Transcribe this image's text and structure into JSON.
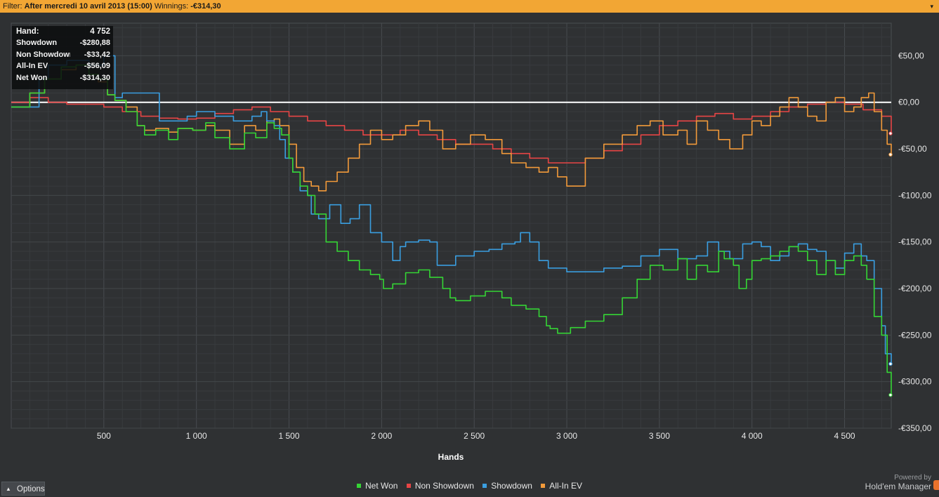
{
  "filter": {
    "label": "Filter:",
    "value": "After mercredi 10 avril 2013 (15:00)",
    "winnings_label": "Winnings:",
    "winnings_value": "-€314,30"
  },
  "tooltip": {
    "rows": [
      {
        "label": "Hand:",
        "value": "4 752"
      },
      {
        "label": "Showdown",
        "value": "-$280,88"
      },
      {
        "label": "Non Showdown",
        "value": "-$33,42"
      },
      {
        "label": "All-In EV",
        "value": "-$56,09"
      },
      {
        "label": "Net Won",
        "value": "-$314,30"
      }
    ]
  },
  "options_label": "Options",
  "powered_by": "Powered by",
  "brand": "Hold'em Manager",
  "colors": {
    "background": "#2f3133",
    "grid": "#43474a",
    "zero_line": "#ffffff",
    "filter_bar": "#f2a634"
  },
  "chart_data": {
    "type": "line",
    "xlabel": "Hands",
    "ylabel": "",
    "xlim": [
      0,
      4752
    ],
    "ylim": [
      -350,
      85
    ],
    "x_ticks": [
      500,
      1000,
      1500,
      2000,
      2500,
      3000,
      3500,
      4000,
      4500
    ],
    "x_tick_labels": [
      "500",
      "1 000",
      "1 500",
      "2 000",
      "2 500",
      "3 000",
      "3 500",
      "4 000",
      "4 500"
    ],
    "y_ticks": [
      50,
      0,
      -50,
      -100,
      -150,
      -200,
      -250,
      -300,
      -350
    ],
    "y_tick_labels": [
      "€50,00",
      "€0,00",
      "-€50,00",
      "-€100,00",
      "-€150,00",
      "-€200,00",
      "-€250,00",
      "-€300,00",
      "-€350,00"
    ],
    "legend": "bottom-center",
    "grid": true,
    "series": [
      {
        "name": "Net Won",
        "color": "#35d535",
        "x": [
          0,
          100,
          180,
          270,
          350,
          420,
          470,
          520,
          560,
          620,
          680,
          720,
          780,
          850,
          900,
          980,
          1050,
          1100,
          1180,
          1260,
          1320,
          1380,
          1420,
          1460,
          1500,
          1520,
          1560,
          1600,
          1640,
          1700,
          1760,
          1820,
          1880,
          1940,
          1990,
          2010,
          2060,
          2130,
          2200,
          2260,
          2330,
          2370,
          2400,
          2480,
          2560,
          2650,
          2700,
          2780,
          2850,
          2890,
          2910,
          2950,
          3020,
          3100,
          3200,
          3300,
          3380,
          3450,
          3520,
          3600,
          3650,
          3700,
          3760,
          3820,
          3850,
          3900,
          3930,
          3970,
          4000,
          4050,
          4100,
          4150,
          4200,
          4250,
          4300,
          4350,
          4400,
          4450,
          4500,
          4550,
          4590,
          4620,
          4660,
          4700,
          4730,
          4752
        ],
        "y": [
          -5,
          10,
          25,
          38,
          40,
          30,
          25,
          8,
          2,
          -10,
          -25,
          -35,
          -30,
          -40,
          -28,
          -30,
          -22,
          -38,
          -50,
          -33,
          -38,
          -22,
          -28,
          -35,
          -60,
          -75,
          -90,
          -100,
          -120,
          -150,
          -160,
          -170,
          -180,
          -185,
          -190,
          -200,
          -195,
          -183,
          -180,
          -188,
          -200,
          -210,
          -213,
          -208,
          -203,
          -210,
          -218,
          -222,
          -230,
          -240,
          -243,
          -248,
          -242,
          -235,
          -228,
          -210,
          -190,
          -175,
          -180,
          -168,
          -190,
          -175,
          -182,
          -160,
          -168,
          -175,
          -200,
          -190,
          -170,
          -168,
          -165,
          -160,
          -155,
          -160,
          -170,
          -185,
          -170,
          -185,
          -170,
          -165,
          -175,
          -190,
          -230,
          -250,
          -290,
          -314.3
        ]
      },
      {
        "name": "Non Showdown",
        "color": "#e84545",
        "x": [
          0,
          100,
          200,
          300,
          400,
          500,
          600,
          700,
          800,
          900,
          1000,
          1100,
          1200,
          1300,
          1400,
          1500,
          1600,
          1700,
          1800,
          1900,
          2000,
          2100,
          2200,
          2300,
          2400,
          2500,
          2600,
          2700,
          2800,
          2900,
          3000,
          3100,
          3200,
          3300,
          3400,
          3500,
          3600,
          3700,
          3800,
          3900,
          4000,
          4100,
          4200,
          4300,
          4400,
          4500,
          4600,
          4700,
          4752
        ],
        "y": [
          0,
          5,
          0,
          -2,
          -2,
          -5,
          -10,
          -15,
          -17,
          -18,
          -17,
          -12,
          -8,
          -5,
          -10,
          -15,
          -20,
          -25,
          -30,
          -35,
          -35,
          -30,
          -35,
          -40,
          -45,
          -45,
          -50,
          -55,
          -60,
          -65,
          -65,
          -60,
          -52,
          -45,
          -35,
          -25,
          -20,
          -15,
          -12,
          -18,
          -15,
          -10,
          -5,
          -2,
          0,
          -2,
          -8,
          -15,
          -33.4
        ]
      },
      {
        "name": "Showdown",
        "color": "#3a9ee0",
        "x": [
          0,
          100,
          150,
          200,
          300,
          420,
          500,
          560,
          600,
          700,
          800,
          900,
          950,
          1000,
          1100,
          1200,
          1300,
          1350,
          1380,
          1420,
          1450,
          1480,
          1520,
          1560,
          1600,
          1620,
          1660,
          1720,
          1780,
          1830,
          1880,
          1940,
          2000,
          2060,
          2100,
          2130,
          2200,
          2260,
          2300,
          2400,
          2500,
          2580,
          2650,
          2720,
          2750,
          2800,
          2850,
          2900,
          3000,
          3100,
          3200,
          3300,
          3400,
          3500,
          3600,
          3700,
          3760,
          3820,
          3880,
          3950,
          4000,
          4050,
          4100,
          4150,
          4200,
          4250,
          4300,
          4350,
          4400,
          4450,
          4500,
          4550,
          4590,
          4620,
          4660,
          4700,
          4720,
          4752
        ],
        "y": [
          -5,
          -5,
          25,
          40,
          45,
          40,
          50,
          5,
          10,
          10,
          -20,
          -20,
          -15,
          -10,
          -15,
          -20,
          -15,
          -10,
          -20,
          -25,
          -40,
          -60,
          -75,
          -95,
          -100,
          -120,
          -125,
          -110,
          -130,
          -125,
          -110,
          -140,
          -150,
          -170,
          -155,
          -150,
          -148,
          -150,
          -175,
          -165,
          -160,
          -158,
          -152,
          -150,
          -140,
          -150,
          -170,
          -178,
          -182,
          -182,
          -178,
          -176,
          -165,
          -158,
          -168,
          -165,
          -150,
          -160,
          -168,
          -152,
          -150,
          -155,
          -170,
          -165,
          -155,
          -152,
          -158,
          -160,
          -170,
          -178,
          -162,
          -152,
          -165,
          -170,
          -200,
          -240,
          -270,
          -280.9
        ]
      },
      {
        "name": "All-In EV",
        "color": "#f29a3a",
        "x": [
          0,
          100,
          180,
          270,
          350,
          420,
          470,
          520,
          560,
          620,
          680,
          720,
          780,
          850,
          900,
          980,
          1050,
          1100,
          1180,
          1260,
          1320,
          1380,
          1420,
          1450,
          1500,
          1540,
          1580,
          1620,
          1660,
          1700,
          1760,
          1820,
          1880,
          1940,
          2000,
          2060,
          2130,
          2200,
          2260,
          2330,
          2400,
          2480,
          2560,
          2650,
          2700,
          2780,
          2850,
          2900,
          2950,
          3000,
          3100,
          3200,
          3300,
          3380,
          3450,
          3520,
          3600,
          3650,
          3700,
          3760,
          3820,
          3880,
          3950,
          4000,
          4050,
          4100,
          4150,
          4200,
          4250,
          4300,
          4350,
          4400,
          4450,
          4500,
          4550,
          4590,
          4630,
          4660,
          4700,
          4730,
          4752
        ],
        "y": [
          -5,
          10,
          25,
          35,
          40,
          30,
          22,
          8,
          2,
          -5,
          -25,
          -30,
          -28,
          -32,
          -28,
          -30,
          -25,
          -30,
          -45,
          -25,
          -30,
          -20,
          -18,
          -25,
          -45,
          -70,
          -85,
          -90,
          -95,
          -85,
          -75,
          -60,
          -45,
          -30,
          -40,
          -35,
          -25,
          -20,
          -30,
          -50,
          -45,
          -35,
          -40,
          -55,
          -65,
          -70,
          -75,
          -70,
          -80,
          -90,
          -60,
          -45,
          -35,
          -25,
          -20,
          -35,
          -30,
          -45,
          -20,
          -30,
          -40,
          -50,
          -35,
          -20,
          -25,
          -15,
          -5,
          5,
          -5,
          -15,
          -20,
          0,
          5,
          -10,
          -5,
          5,
          10,
          -10,
          -30,
          -45,
          -56.1
        ]
      }
    ]
  }
}
